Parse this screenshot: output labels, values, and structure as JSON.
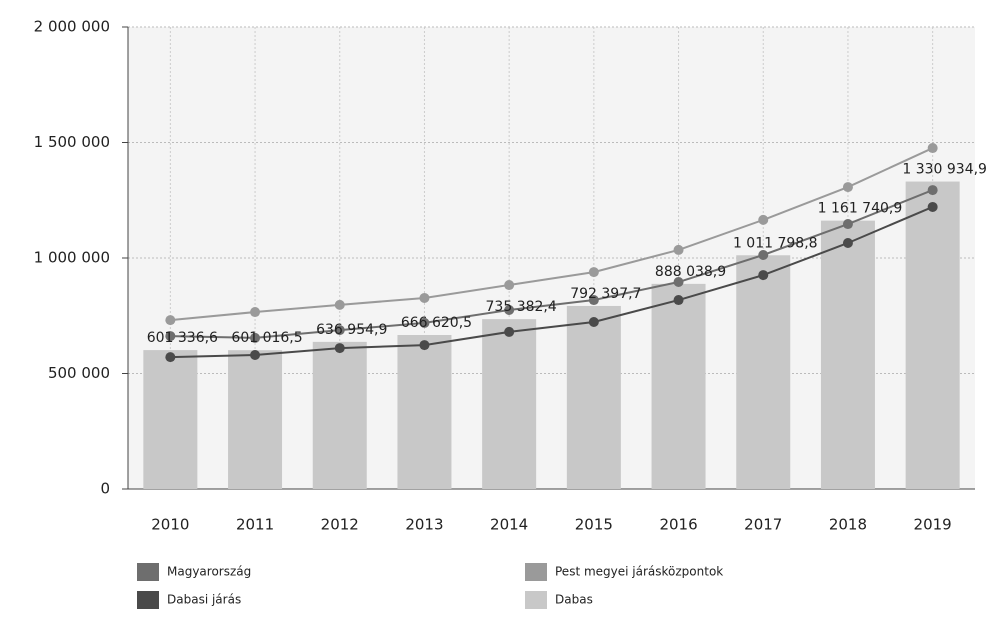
{
  "chart_data": {
    "type": "bar_line",
    "categories": [
      "2010",
      "2011",
      "2012",
      "2013",
      "2014",
      "2015",
      "2016",
      "2017",
      "2018",
      "2019"
    ],
    "series": [
      {
        "name": "Dabas",
        "type": "bar",
        "color": "#c8c8c8",
        "values": [
          601336.6,
          601016.5,
          636954.9,
          666620.5,
          735382.4,
          792397.7,
          888038.9,
          1011798.8,
          1161740.9,
          1330934.9
        ],
        "value_labels": [
          "601 336,6",
          "601 016,5",
          "636 954,9",
          "666 620,5",
          "735 382,4",
          "792 397,7",
          "888 038,9",
          "1 011 798,8",
          "1 161 740,9",
          "1 330 934,9"
        ]
      },
      {
        "name": "Pest megyei járásközpontok",
        "type": "line",
        "color": "#9a9a9a",
        "values": [
          731000,
          766000,
          797000,
          827000,
          883000,
          939000,
          1035000,
          1165000,
          1307000,
          1476000
        ]
      },
      {
        "name": "Magyarország",
        "type": "line",
        "color": "#6e6e6e",
        "values": [
          662000,
          654000,
          688000,
          719000,
          775000,
          818000,
          896000,
          1013000,
          1147000,
          1294000
        ]
      },
      {
        "name": "Dabasi járás",
        "type": "line",
        "color": "#4a4a4a",
        "values": [
          571000,
          580000,
          610000,
          623000,
          680000,
          723000,
          818000,
          926000,
          1065000,
          1221000
        ]
      }
    ],
    "legend_order": [
      2,
      3,
      1,
      0
    ],
    "ylim": [
      0,
      2000000
    ],
    "yticks": [
      0,
      {
        "value": 500000,
        "label": "500 000"
      },
      {
        "value": 1000000,
        "label": "1 000 000"
      },
      {
        "value": 1500000,
        "label": "1 500 000"
      },
      {
        "value": 2000000,
        "label": "2 000 000"
      }
    ],
    "grid": true
  }
}
